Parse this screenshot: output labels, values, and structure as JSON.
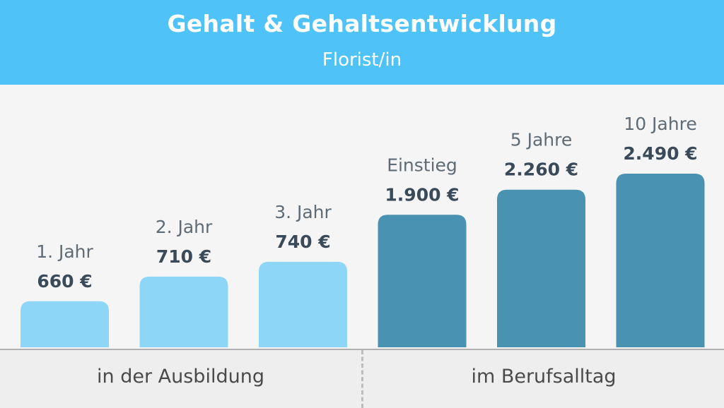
{
  "header": {
    "title": "Gehalt & Gehaltsentwicklung",
    "subtitle": "Florist/in"
  },
  "groups": [
    {
      "label": "in der Ausbildung"
    },
    {
      "label": "im Berufsalltag"
    }
  ],
  "colors": {
    "header": "#4fc3f7",
    "training_bars": "#8ed6f8",
    "career_bars": "#4a92b2"
  },
  "chart_data": {
    "type": "bar",
    "categories": [
      "1. Jahr",
      "2. Jahr",
      "3. Jahr",
      "Einstieg",
      "5 Jahre",
      "10 Jahre"
    ],
    "values": [
      660,
      710,
      740,
      1900,
      2260,
      2490
    ],
    "value_labels": [
      "660 €",
      "710 €",
      "740 €",
      "1.900 €",
      "2.260 €",
      "2.490 €"
    ],
    "bar_groups": [
      "in der Ausbildung",
      "in der Ausbildung",
      "in der Ausbildung",
      "im Berufsalltag",
      "im Berufsalltag",
      "im Berufsalltag"
    ],
    "unit": "€",
    "grid": false,
    "legend": "none"
  }
}
